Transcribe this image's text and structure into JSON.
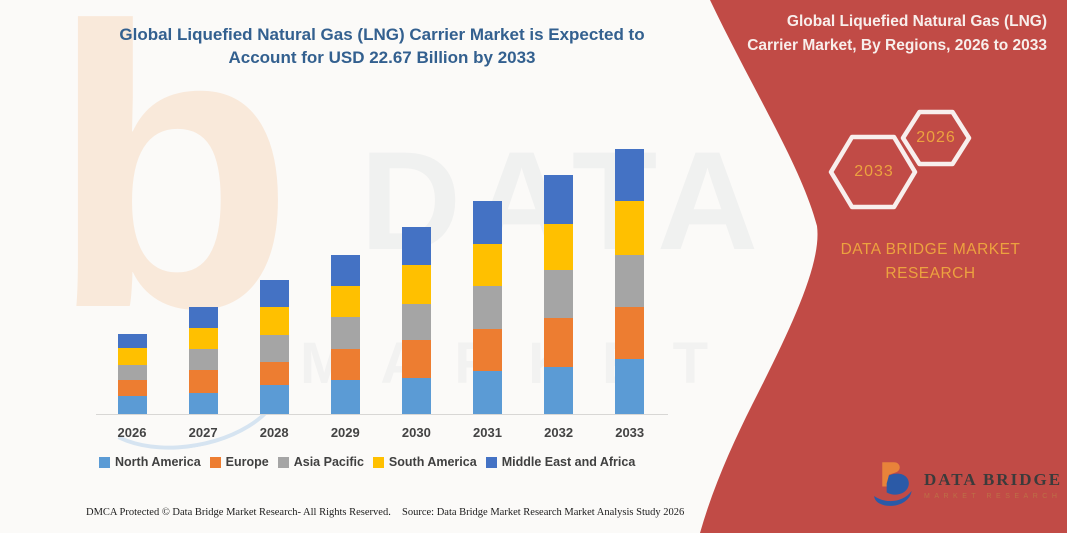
{
  "header": {
    "title": "Global Liquefied Natural Gas (LNG) Carrier Market is Expected to Account for USD 22.67 Billion by 2033"
  },
  "banner": {
    "title": "Global Liquefied Natural Gas (LNG) Carrier Market, By Regions, 2026 to 2033",
    "bg_color": "#C14B46",
    "accent_text_color": "#ECA23F",
    "hexagon_badges": [
      {
        "label": "2033"
      },
      {
        "label": "2026"
      }
    ],
    "brand": "DATA BRIDGE MARKET RESEARCH"
  },
  "watermark": {
    "letter": "b",
    "line1": "DATA BRIDGE",
    "line2": "MARKET RESEARCH"
  },
  "logo": {
    "name": "DATA BRIDGE",
    "subtitle": "MARKET RESEARCH"
  },
  "footer": {
    "left": "DMCA Protected © Data Bridge Market Research-  All Rights Reserved.",
    "right": "Source: Data Bridge Market Research  Market Analysis Study 2026"
  },
  "chart_data": {
    "type": "bar",
    "stacked": true,
    "title": "Global Liquefied Natural Gas (LNG) Carrier Market is Expected to Account for USD 22.67 Billion by 2033",
    "unit": "USD Billion",
    "categories": [
      "2026",
      "2027",
      "2028",
      "2029",
      "2030",
      "2031",
      "2032",
      "2033"
    ],
    "series": [
      {
        "name": "North America",
        "color": "#5B9BD5",
        "values": [
          1.58,
          1.81,
          2.44,
          2.87,
          3.07,
          3.64,
          4.02,
          4.68
        ]
      },
      {
        "name": "Europe",
        "color": "#ED7D31",
        "values": [
          1.29,
          1.95,
          2.01,
          2.7,
          3.24,
          3.59,
          4.16,
          4.5
        ]
      },
      {
        "name": "Asia Pacific",
        "color": "#A5A5A5",
        "values": [
          1.29,
          1.78,
          2.3,
          2.72,
          3.07,
          3.73,
          4.11,
          4.39
        ]
      },
      {
        "name": "South America",
        "color": "#FFC000",
        "values": [
          1.46,
          1.78,
          2.38,
          2.67,
          3.36,
          3.59,
          3.96,
          4.59
        ]
      },
      {
        "name": "Middle East and Africa",
        "color": "#4472C4",
        "values": [
          1.21,
          1.83,
          2.3,
          2.64,
          3.24,
          3.64,
          4.13,
          4.51
        ]
      }
    ],
    "totals": [
      6.83,
      9.15,
      11.43,
      13.6,
      15.98,
      18.19,
      20.38,
      22.67
    ],
    "ylabel": "",
    "xlabel": "",
    "grid": false,
    "legend_position": "bottom"
  }
}
